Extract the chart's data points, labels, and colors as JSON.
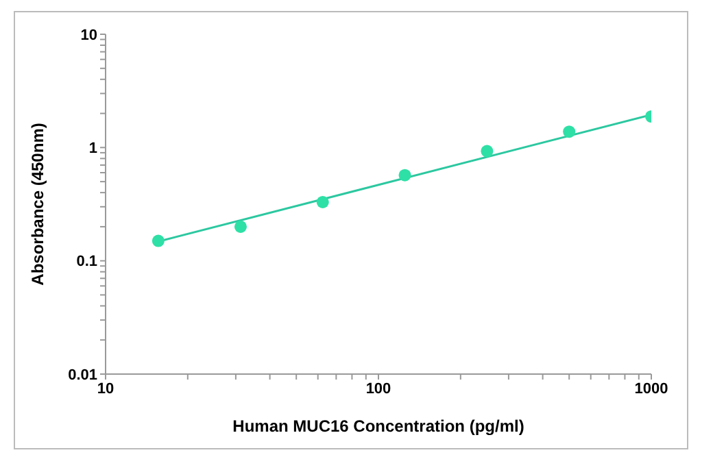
{
  "chart_data": {
    "type": "scatter",
    "xlabel": "Human MUC16 Concentration (pg/ml)",
    "ylabel": "Absorbance (450nm)",
    "x": [
      15.6,
      31.25,
      62.5,
      125,
      250,
      500,
      1000
    ],
    "series": [
      {
        "color": "#2ee0a6",
        "values": [
          0.15,
          0.2,
          0.33,
          0.57,
          0.93,
          1.38,
          1.88
        ],
        "marker": "circle"
      },
      {
        "type": "line",
        "color": "#2cc8a0",
        "x": [
          15.6,
          1000
        ],
        "values": [
          0.148,
          1.95
        ],
        "marker": "none",
        "line_style": "solid"
      }
    ],
    "log": "xy",
    "grid": false,
    "legend": false,
    "xlim": [
      10,
      1000
    ],
    "ylim": [
      0.01,
      10
    ],
    "xticks": [
      10,
      {
        "value": 20,
        "label": null
      },
      {
        "value": 30,
        "label": null
      },
      {
        "value": 40,
        "label": null
      },
      {
        "value": 50,
        "label": null
      },
      {
        "value": 60,
        "label": null
      },
      {
        "value": 70,
        "label": null
      },
      {
        "value": 80,
        "label": null
      },
      {
        "value": 90,
        "label": null
      },
      100,
      {
        "value": 200,
        "label": null
      },
      {
        "value": 300,
        "label": null
      },
      {
        "value": 400,
        "label": null
      },
      {
        "value": 500,
        "label": null
      },
      {
        "value": 600,
        "label": null
      },
      {
        "value": 700,
        "label": null
      },
      {
        "value": 800,
        "label": null
      },
      {
        "value": 900,
        "label": null
      },
      1000
    ],
    "yticks": [
      0.01,
      {
        "value": 0.02,
        "label": null
      },
      {
        "value": 0.03,
        "label": null
      },
      {
        "value": 0.04,
        "label": null
      },
      {
        "value": 0.05,
        "label": null
      },
      {
        "value": 0.06,
        "label": null
      },
      {
        "value": 0.07,
        "label": null
      },
      {
        "value": 0.08,
        "label": null
      },
      {
        "value": 0.09,
        "label": null
      },
      0.1,
      {
        "value": 0.2,
        "label": null
      },
      {
        "value": 0.3,
        "label": null
      },
      {
        "value": 0.4,
        "label": null
      },
      {
        "value": 0.5,
        "label": null
      },
      {
        "value": 0.6,
        "label": null
      },
      {
        "value": 0.7,
        "label": null
      },
      {
        "value": 0.8,
        "label": null
      },
      {
        "value": 0.9,
        "label": null
      },
      1,
      {
        "value": 2,
        "label": null
      },
      {
        "value": 3,
        "label": null
      },
      {
        "value": 4,
        "label": null
      },
      {
        "value": 5,
        "label": null
      },
      {
        "value": 6,
        "label": null
      },
      {
        "value": 7,
        "label": null
      },
      {
        "value": 8,
        "label": null
      },
      {
        "value": 9,
        "label": null
      },
      10
    ]
  }
}
